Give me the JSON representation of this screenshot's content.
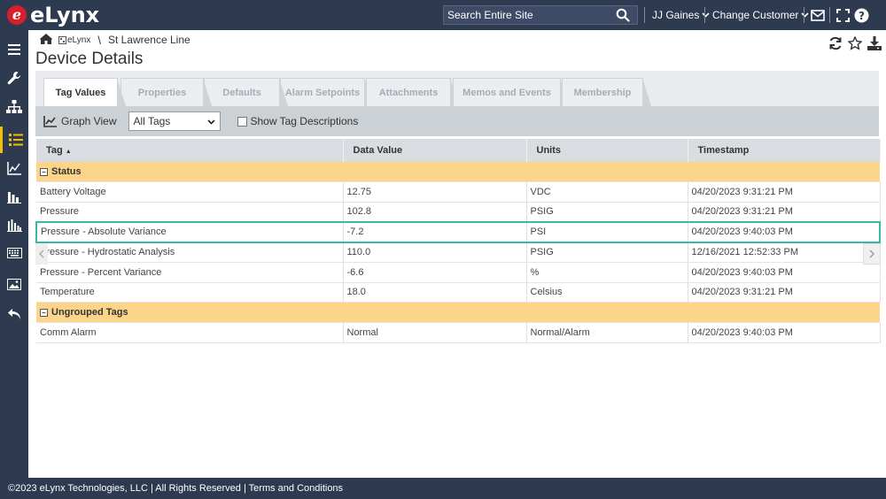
{
  "brand": {
    "logo_letter": "e",
    "logo_text": "eLynx"
  },
  "topbar": {
    "search_placeholder": "Search Entire Site",
    "user_label": "JJ Gaines",
    "customer_label": "Change Customer"
  },
  "breadcrumb": {
    "org": "eLynx",
    "separator": "\\",
    "current": "St Lawrence Line"
  },
  "page": {
    "title": "Device Details"
  },
  "tabs": [
    {
      "label": "Tag Values",
      "active": true
    },
    {
      "label": "Properties"
    },
    {
      "label": "Defaults"
    },
    {
      "label": "Alarm Setpoints"
    },
    {
      "label": "Attachments"
    },
    {
      "label": "Memos and Events"
    },
    {
      "label": "Membership"
    }
  ],
  "toolbar": {
    "graph_view_label": "Graph View",
    "tag_filter_value": "All Tags",
    "show_desc_label": "Show Tag Descriptions"
  },
  "grid": {
    "columns": [
      "Tag",
      "Data Value",
      "Units",
      "Timestamp"
    ],
    "groups": [
      {
        "name": "Status",
        "rows": [
          {
            "tag": "Battery Voltage",
            "value": "12.75",
            "units": "VDC",
            "timestamp": "04/20/2023 9:31:21 PM"
          },
          {
            "tag": "Pressure",
            "value": "102.8",
            "units": "PSIG",
            "timestamp": "04/20/2023 9:31:21 PM"
          },
          {
            "tag": "Pressure - Absolute Variance",
            "value": "-7.2",
            "units": "PSI",
            "timestamp": "04/20/2023 9:40:03 PM"
          },
          {
            "tag": "Pressure - Hydrostatic Analysis",
            "value": "110.0",
            "units": "PSIG",
            "timestamp": "12/16/2021 12:52:33 PM"
          },
          {
            "tag": "Pressure - Percent Variance",
            "value": "-6.6",
            "units": "%",
            "timestamp": "04/20/2023 9:40:03 PM"
          },
          {
            "tag": "Temperature",
            "value": "18.0",
            "units": "Celsius",
            "timestamp": "04/20/2023 9:31:21 PM"
          }
        ]
      },
      {
        "name": "Ungrouped Tags",
        "rows": [
          {
            "tag": "Comm Alarm",
            "value": "Normal",
            "units": "Normal/Alarm",
            "timestamp": "04/20/2023 9:40:03 PM"
          }
        ]
      }
    ]
  },
  "footer": {
    "text": "©2023 eLynx Technologies, LLC | All Rights Reserved | Terms and Conditions"
  },
  "colors": {
    "nav_bg": "#2e3a50",
    "group_row": "#fcd48a",
    "selected_row_border": "#3bb8a8",
    "active_nav": "#f3c000"
  }
}
